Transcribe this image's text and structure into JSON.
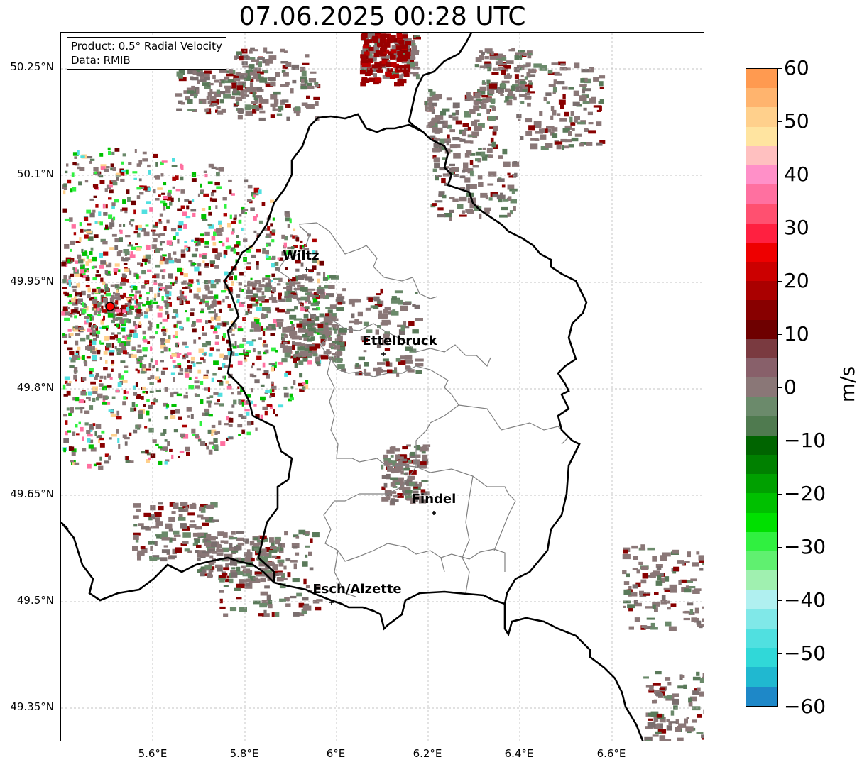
{
  "title": "07.06.2025 00:28 UTC",
  "legend_box": {
    "line1": "Product: 0.5° Radial Velocity",
    "line2": "Data: RMIB"
  },
  "lat_ticks": [
    "50.25°N",
    "50.1°N",
    "49.95°N",
    "49.8°N",
    "49.65°N",
    "49.5°N",
    "49.35°N"
  ],
  "lon_ticks": [
    "5.6°E",
    "5.8°E",
    "6°E",
    "6.2°E",
    "6.4°E",
    "6.6°E"
  ],
  "cities": [
    {
      "name": "Wiltz"
    },
    {
      "name": "Ettelbruck"
    },
    {
      "name": "Findel"
    },
    {
      "name": "Esch/Alzette"
    }
  ],
  "colorbar": {
    "unit": "m/s",
    "ticks": [
      "60",
      "50",
      "40",
      "30",
      "20",
      "10",
      "0",
      "−10",
      "−20",
      "−30",
      "−40",
      "−50",
      "−60"
    ],
    "colors": [
      "#ff9a50",
      "#ffb46e",
      "#ffd08c",
      "#ffe4a0",
      "#ffc0c0",
      "#ff90c8",
      "#ff70a0",
      "#ff5070",
      "#ff2040",
      "#ee0000",
      "#cc0000",
      "#aa0000",
      "#880000",
      "#6e0000",
      "#7a3a40",
      "#88606a",
      "#8a7777",
      "#6b8a6b",
      "#4f7a4f",
      "#006400",
      "#008000",
      "#00a000",
      "#00c000",
      "#00e000",
      "#30f040",
      "#60f070",
      "#a0f0b0",
      "#b0f0f0",
      "#80e8e8",
      "#50e0e0",
      "#30d8d8",
      "#20b8d0",
      "#1e88c8"
    ]
  },
  "radar_site": {
    "color": "#ff0000"
  }
}
